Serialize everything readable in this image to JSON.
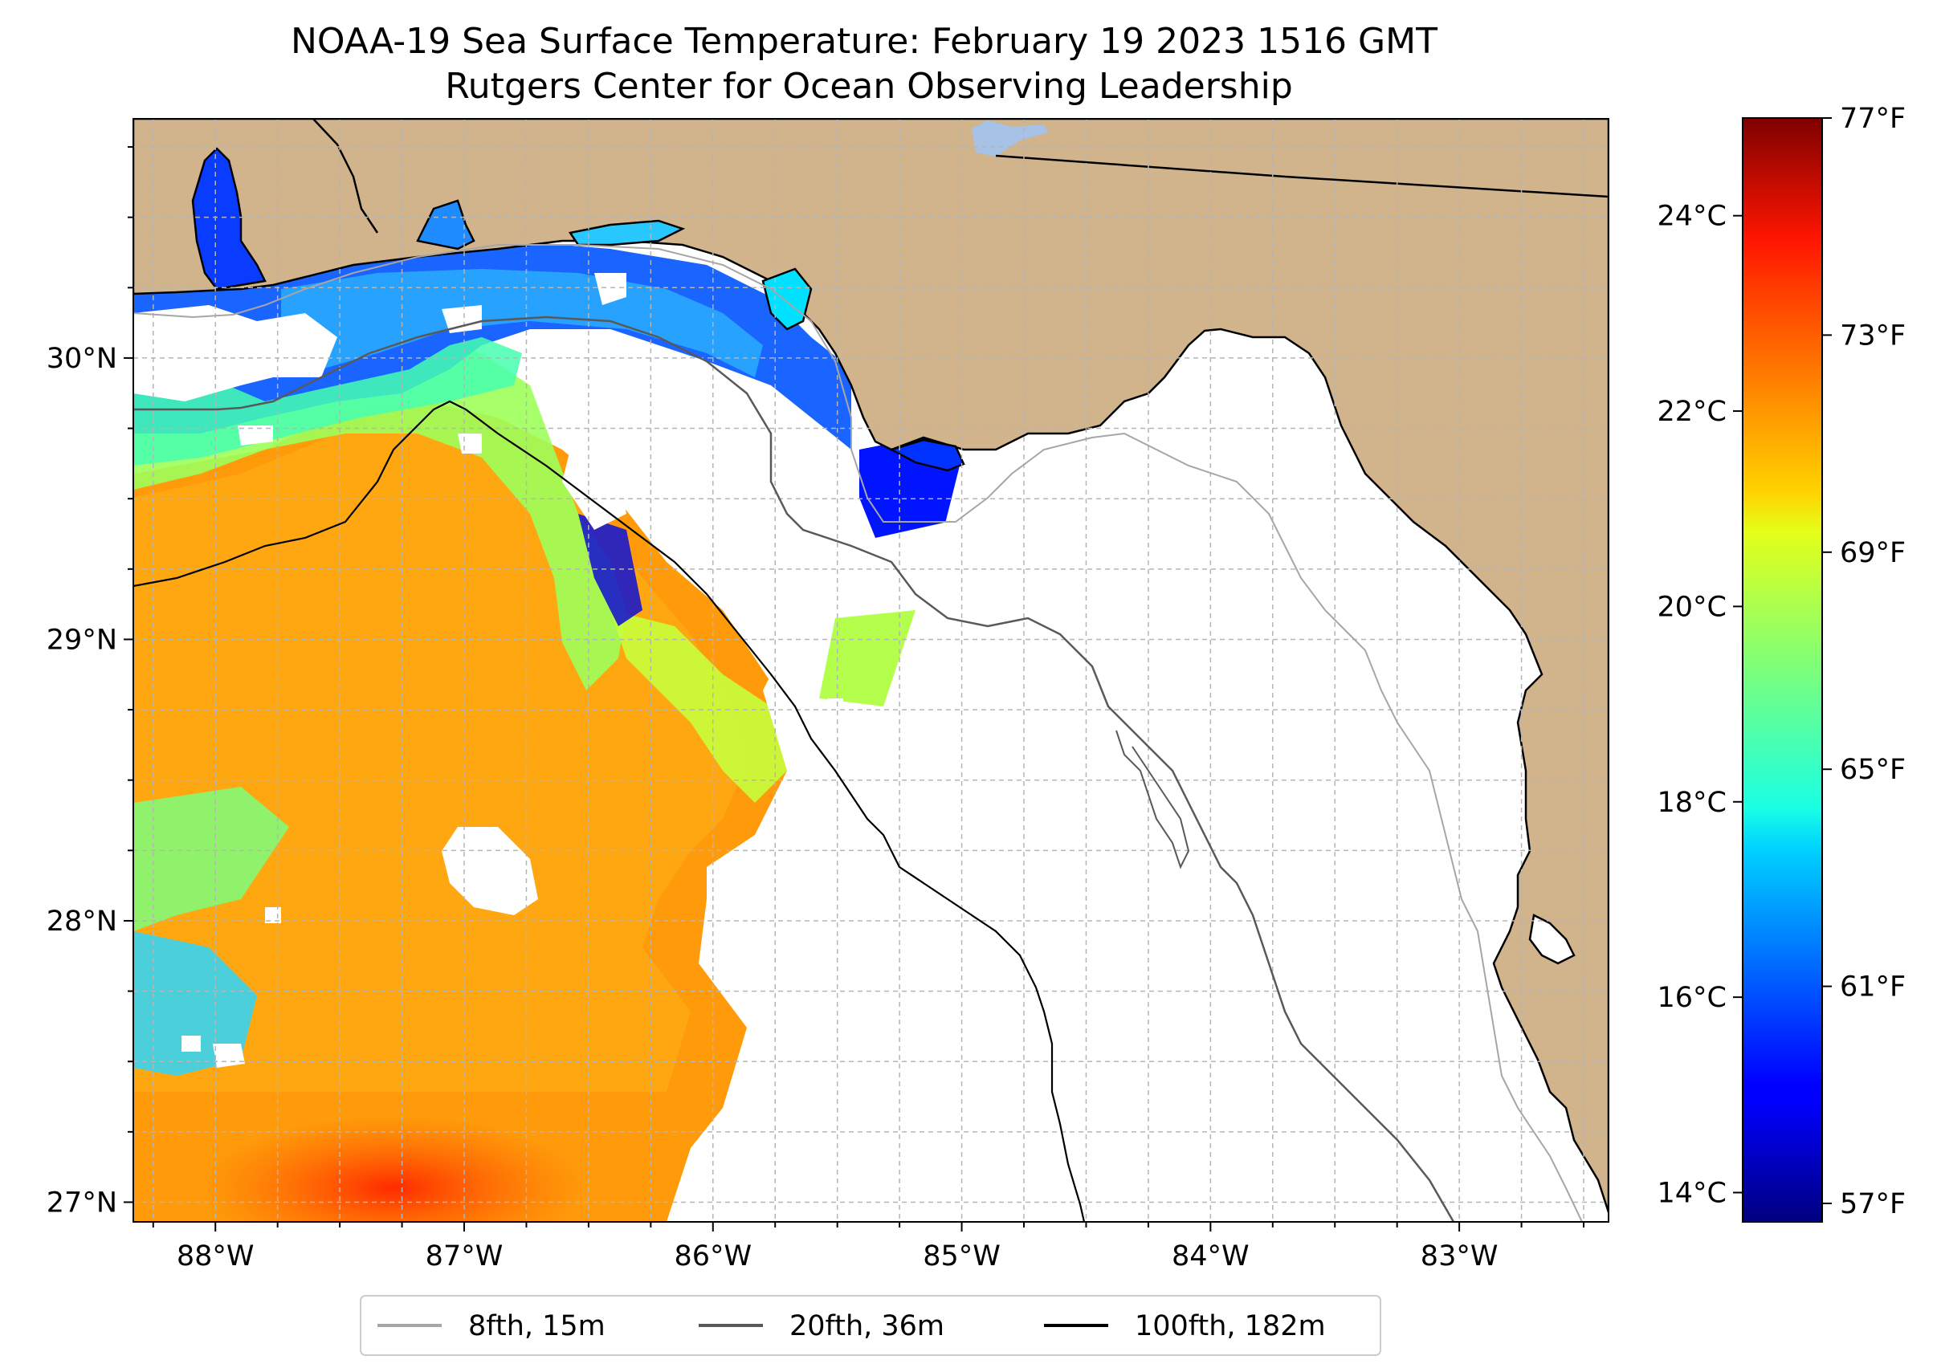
{
  "title": {
    "line1": "NOAA-19 Sea Surface Temperature: February 19 2023 1516 GMT",
    "line2": "Rutgers Center for Ocean Observing Leadership"
  },
  "map": {
    "lon_range": [
      -88.33,
      -82.4
    ],
    "lat_range": [
      26.93,
      30.85
    ],
    "lon_ticks": [
      {
        "value": -88,
        "label": "88°W"
      },
      {
        "value": -87,
        "label": "87°W"
      },
      {
        "value": -86,
        "label": "86°W"
      },
      {
        "value": -85,
        "label": "85°W"
      },
      {
        "value": -84,
        "label": "84°W"
      },
      {
        "value": -83,
        "label": "83°W"
      }
    ],
    "lat_ticks": [
      {
        "value": 27,
        "label": "27°N"
      },
      {
        "value": 28,
        "label": "28°N"
      },
      {
        "value": 29,
        "label": "29°N"
      },
      {
        "value": 30,
        "label": "30°N"
      }
    ],
    "gridlines": "dashed",
    "colors": {
      "land": "#d1b38c",
      "ocean_no_data": "#ffffff",
      "lake": "#a6c2e6",
      "grid": "#b5b5b5"
    }
  },
  "colorbar": {
    "colormap": "jet",
    "celsius_range": [
      13.7,
      25.0
    ],
    "celsius_ticks": [
      {
        "value": 14,
        "label": "14°C"
      },
      {
        "value": 16,
        "label": "16°C"
      },
      {
        "value": 18,
        "label": "18°C"
      },
      {
        "value": 20,
        "label": "20°C"
      },
      {
        "value": 22,
        "label": "22°C"
      },
      {
        "value": 24,
        "label": "24°C"
      }
    ],
    "fahrenheit_range": [
      56.66,
      77.0
    ],
    "fahrenheit_ticks": [
      {
        "value": 57,
        "label": "57°F"
      },
      {
        "value": 61,
        "label": "61°F"
      },
      {
        "value": 65,
        "label": "65°F"
      },
      {
        "value": 69,
        "label": "69°F"
      },
      {
        "value": 73,
        "label": "73°F"
      },
      {
        "value": 77,
        "label": "77°F"
      }
    ]
  },
  "legend": {
    "placement": "bottom-center",
    "items": [
      {
        "label": "8fth, 15m",
        "color": "#a6a6a6"
      },
      {
        "label": "20fth, 36m",
        "color": "#595959"
      },
      {
        "label": "100fth, 182m",
        "color": "#000000"
      }
    ]
  }
}
